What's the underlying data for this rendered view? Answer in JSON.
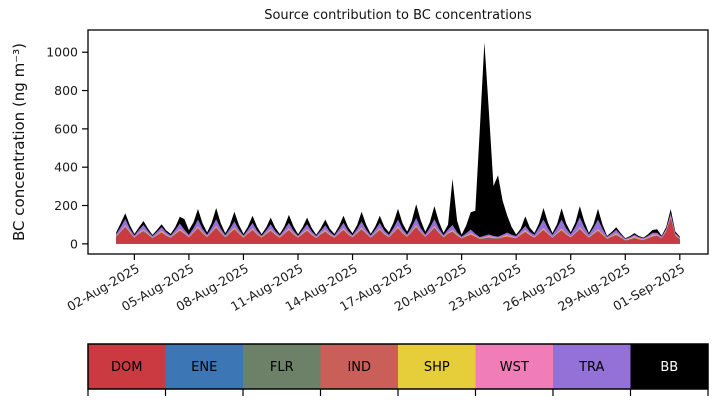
{
  "chart_data": {
    "type": "area",
    "stacked": true,
    "title": "Source contribution to BC concentrations",
    "xlabel": "",
    "ylabel": "BC concentration (ng m⁻³)",
    "grid": false,
    "x_unit": "days (1 = 01-Aug-2025 00:00, 0.25 = 6 h step)",
    "x_days": {
      "start": 1.0,
      "step": 0.25,
      "count": 125
    },
    "xlim": [
      -0.55,
      33.55
    ],
    "ylim": [
      -53,
      1116
    ],
    "yticks": [
      0,
      200,
      400,
      600,
      800,
      1000
    ],
    "xticks": [
      {
        "t": 2,
        "label": "02-Aug-2025"
      },
      {
        "t": 5,
        "label": "05-Aug-2025"
      },
      {
        "t": 8,
        "label": "08-Aug-2025"
      },
      {
        "t": 11,
        "label": "11-Aug-2025"
      },
      {
        "t": 14,
        "label": "14-Aug-2025"
      },
      {
        "t": 17,
        "label": "17-Aug-2025"
      },
      {
        "t": 20,
        "label": "20-Aug-2025"
      },
      {
        "t": 23,
        "label": "23-Aug-2025"
      },
      {
        "t": 26,
        "label": "26-Aug-2025"
      },
      {
        "t": 29,
        "label": "29-Aug-2025"
      },
      {
        "t": 32,
        "label": "01-Sep-2025"
      }
    ],
    "legend": {
      "position": "bottom-bar",
      "text_color_default": "#000000"
    },
    "series": [
      {
        "name": "DOM",
        "color": "#cb3a41",
        "label_text_color": "#000000",
        "values": [
          35,
          60,
          85,
          55,
          30,
          50,
          62,
          45,
          28,
          42,
          55,
          40,
          30,
          48,
          65,
          50,
          32,
          55,
          78,
          52,
          33,
          56,
          80,
          54,
          32,
          52,
          72,
          50,
          30,
          50,
          68,
          46,
          30,
          48,
          64,
          44,
          30,
          50,
          68,
          46,
          30,
          48,
          64,
          44,
          28,
          46,
          60,
          42,
          30,
          50,
          68,
          46,
          32,
          52,
          72,
          50,
          30,
          50,
          68,
          46,
          32,
          55,
          78,
          52,
          34,
          58,
          84,
          56,
          34,
          56,
          80,
          54,
          32,
          50,
          60,
          40,
          26,
          36,
          44,
          34,
          24,
          26,
          28,
          26,
          26,
          30,
          34,
          30,
          28,
          44,
          58,
          42,
          30,
          50,
          68,
          48,
          30,
          50,
          66,
          46,
          32,
          52,
          74,
          50,
          30,
          48,
          64,
          44,
          24,
          34,
          42,
          30,
          16,
          20,
          26,
          20,
          18,
          26,
          34,
          40,
          26,
          60,
          130,
          40,
          22
        ]
      },
      {
        "name": "ENE",
        "color": "#3d76b4",
        "label_text_color": "#000000",
        "values": [
          0.8,
          1.2,
          1.8,
          1.2,
          0.8,
          1.2,
          1.8,
          1.2,
          0.8,
          1.2,
          1.8,
          1.2,
          0.8,
          1.2,
          1.8,
          1.2,
          0.8,
          1.2,
          1.8,
          1.2,
          0.8,
          1.2,
          1.8,
          1.2,
          0.8,
          1.2,
          1.8,
          1.2,
          0.8,
          1.2,
          1.8,
          1.2,
          0.8,
          1.2,
          1.8,
          1.2,
          0.8,
          1.2,
          1.8,
          1.2,
          0.8,
          1.2,
          1.8,
          1.2,
          0.8,
          1.2,
          1.8,
          1.2,
          0.8,
          1.2,
          1.8,
          1.2,
          0.8,
          1.2,
          1.8,
          1.2,
          0.8,
          1.2,
          1.8,
          1.2,
          0.8,
          1.2,
          1.8,
          1.2,
          0.8,
          1.2,
          1.8,
          1.2,
          0.8,
          1.2,
          1.8,
          1.2,
          0.8,
          1.2,
          1.8,
          1.2,
          0.8,
          1.2,
          1.8,
          1.2,
          0.8,
          1.2,
          1.8,
          1.2,
          0.8,
          1.2,
          1.8,
          1.2,
          0.8,
          1.2,
          1.8,
          1.2,
          0.8,
          1.2,
          1.8,
          1.2,
          0.8,
          1.2,
          1.8,
          1.2,
          0.8,
          1.2,
          1.8,
          1.2,
          0.8,
          1.2,
          1.8,
          1.2,
          0.8,
          1.2,
          1.8,
          1.2,
          0.8,
          1.2,
          1.8,
          1.2,
          0.8,
          1.2,
          1.8,
          1.2,
          0.8,
          1.2,
          1.8,
          1.2,
          0.8
        ]
      },
      {
        "name": "FLR",
        "color": "#6d8169",
        "label_text_color": "#000000",
        "values": [
          0.7,
          1.1,
          1.7,
          1.1,
          0.7,
          1.1,
          1.7,
          1.1,
          0.7,
          1.1,
          1.7,
          1.1,
          0.7,
          1.1,
          1.7,
          1.1,
          0.7,
          1.1,
          1.7,
          1.1,
          0.7,
          1.1,
          1.7,
          1.1,
          0.7,
          1.1,
          1.7,
          1.1,
          0.7,
          1.1,
          1.7,
          1.1,
          0.7,
          1.1,
          1.7,
          1.1,
          0.7,
          1.1,
          1.7,
          1.1,
          0.7,
          1.1,
          1.7,
          1.1,
          0.7,
          1.1,
          1.7,
          1.1,
          0.7,
          1.1,
          1.7,
          1.1,
          0.7,
          1.1,
          1.7,
          1.1,
          0.7,
          1.1,
          1.7,
          1.1,
          0.7,
          1.1,
          1.7,
          1.1,
          0.7,
          1.1,
          1.7,
          1.1,
          0.7,
          1.1,
          1.7,
          1.1,
          0.7,
          1.1,
          1.7,
          1.1,
          0.7,
          1.1,
          1.7,
          1.1,
          0.7,
          1.1,
          1.7,
          1.1,
          0.7,
          1.1,
          1.7,
          1.1,
          0.7,
          1.1,
          1.7,
          1.1,
          0.7,
          1.1,
          1.7,
          1.1,
          0.7,
          1.1,
          1.7,
          1.1,
          0.7,
          1.1,
          1.7,
          1.1,
          0.7,
          1.1,
          1.7,
          1.1,
          0.7,
          1.1,
          1.7,
          1.1,
          0.7,
          1.1,
          1.7,
          1.1,
          0.7,
          1.1,
          1.7,
          1.1,
          0.7,
          1.1,
          1.7,
          1.1,
          0.7
        ]
      },
      {
        "name": "IND",
        "color": "#c95f58",
        "label_text_color": "#000000",
        "values": [
          1.2,
          1.8,
          2.6,
          1.8,
          1.2,
          1.8,
          2.6,
          1.8,
          1.2,
          1.8,
          2.6,
          1.8,
          1.2,
          1.8,
          2.6,
          1.8,
          1.2,
          1.8,
          2.6,
          1.8,
          1.2,
          1.8,
          2.6,
          1.8,
          1.2,
          1.8,
          2.6,
          1.8,
          1.2,
          1.8,
          2.6,
          1.8,
          1.2,
          1.8,
          2.6,
          1.8,
          1.2,
          1.8,
          2.6,
          1.8,
          1.2,
          1.8,
          2.6,
          1.8,
          1.2,
          1.8,
          2.6,
          1.8,
          1.2,
          1.8,
          2.6,
          1.8,
          1.2,
          1.8,
          2.6,
          1.8,
          1.2,
          1.8,
          2.6,
          1.8,
          1.2,
          1.8,
          2.6,
          1.8,
          1.2,
          1.8,
          2.6,
          1.8,
          1.2,
          1.8,
          2.6,
          1.8,
          1.2,
          1.8,
          2.6,
          1.8,
          1.2,
          1.8,
          2.6,
          1.8,
          1.2,
          1.8,
          2.6,
          1.8,
          1.2,
          1.8,
          2.6,
          1.8,
          1.2,
          1.8,
          2.6,
          1.8,
          1.2,
          1.8,
          2.6,
          1.8,
          1.2,
          1.8,
          2.6,
          1.8,
          1.2,
          1.8,
          2.6,
          1.8,
          1.2,
          1.8,
          2.6,
          1.8,
          1.2,
          1.8,
          2.6,
          1.8,
          1.2,
          1.8,
          2.6,
          1.8,
          1.2,
          1.8,
          2.6,
          1.8,
          1.2,
          1.8,
          2.6,
          1.8,
          1.2
        ]
      },
      {
        "name": "SHP",
        "color": "#e5ce3a",
        "label_text_color": "#000000",
        "values": [
          1.5,
          2.2,
          3.5,
          2.4,
          1.5,
          2.2,
          3.5,
          2.4,
          1.5,
          2.2,
          3.5,
          2.4,
          1.5,
          2.2,
          3.5,
          2.4,
          1.5,
          2.2,
          3.5,
          2.4,
          1.5,
          2.2,
          3.5,
          2.4,
          1.5,
          2.2,
          3.5,
          2.4,
          1.5,
          2.2,
          3.5,
          2.4,
          1.5,
          2.2,
          3.5,
          2.4,
          1.5,
          2.2,
          3.5,
          2.4,
          1.5,
          2.2,
          3.5,
          2.4,
          1.5,
          2.2,
          3.5,
          2.4,
          1.5,
          2.2,
          3.5,
          2.4,
          1.5,
          2.2,
          3.5,
          2.4,
          1.5,
          2.2,
          3.5,
          2.4,
          1.5,
          2.2,
          3.5,
          2.4,
          1.5,
          2.2,
          3.5,
          2.4,
          1.5,
          2.2,
          3.5,
          2.4,
          1.5,
          2.2,
          3.5,
          2.4,
          1.5,
          2.2,
          3.5,
          2.4,
          1.5,
          2.2,
          3.5,
          2.4,
          1.5,
          2.2,
          3.5,
          2.4,
          1.5,
          2.2,
          3.5,
          2.4,
          1.5,
          2.2,
          3.5,
          2.4,
          1.5,
          2.2,
          3.5,
          2.4,
          1.5,
          2.2,
          3.5,
          2.4,
          1.5,
          2.2,
          3.5,
          2.4,
          1.5,
          2.2,
          3.5,
          2.4,
          1.5,
          2.2,
          3.5,
          2.4,
          1.5,
          2.2,
          3.5,
          2.4,
          1.5,
          2.2,
          3.5,
          2.4,
          1.5
        ]
      },
      {
        "name": "WST",
        "color": "#f07db8",
        "label_text_color": "#000000",
        "values": [
          2.5,
          3.5,
          5.5,
          3.8,
          2.5,
          3.5,
          5.5,
          3.8,
          2.5,
          3.5,
          5.5,
          3.8,
          2.5,
          3.5,
          5.5,
          3.8,
          2.5,
          3.5,
          5.5,
          3.8,
          2.5,
          3.5,
          5.5,
          3.8,
          2.5,
          3.5,
          5.5,
          3.8,
          2.5,
          3.5,
          5.5,
          3.8,
          2.5,
          3.5,
          5.5,
          3.8,
          2.5,
          3.5,
          5.5,
          3.8,
          2.5,
          3.5,
          5.5,
          3.8,
          2.5,
          3.5,
          5.5,
          3.8,
          2.5,
          3.5,
          5.5,
          3.8,
          2.5,
          3.5,
          5.5,
          3.8,
          2.5,
          3.5,
          5.5,
          3.8,
          2.5,
          3.5,
          5.5,
          3.8,
          2.5,
          3.5,
          5.5,
          3.8,
          2.5,
          3.5,
          5.5,
          3.8,
          2.5,
          3.5,
          5.5,
          3.8,
          2.5,
          3.5,
          5.5,
          3.8,
          2.5,
          3.5,
          5.5,
          3.8,
          2.5,
          3.5,
          5.5,
          3.8,
          2.5,
          3.5,
          5.5,
          3.8,
          2.5,
          3.5,
          5.5,
          3.8,
          2.5,
          3.5,
          5.5,
          3.8,
          2.5,
          3.5,
          5.5,
          3.8,
          2.5,
          3.5,
          5.5,
          3.8,
          2.5,
          3.5,
          5.5,
          3.8,
          2.5,
          3.5,
          5.5,
          3.8,
          2.5,
          3.5,
          5.5,
          3.8,
          2.5,
          3.5,
          5.5,
          3.8,
          2.5
        ]
      },
      {
        "name": "TRA",
        "color": "#9471d6",
        "label_text_color": "#000000",
        "values": [
          8,
          18,
          30,
          15,
          7,
          14,
          22,
          12,
          6,
          12,
          18,
          10,
          7,
          15,
          26,
          14,
          8,
          18,
          34,
          16,
          8,
          18,
          34,
          16,
          7,
          16,
          30,
          14,
          7,
          15,
          26,
          13,
          6,
          14,
          24,
          12,
          7,
          15,
          26,
          13,
          6,
          14,
          24,
          12,
          6,
          13,
          22,
          11,
          7,
          15,
          26,
          13,
          7,
          16,
          30,
          14,
          7,
          15,
          26,
          13,
          8,
          18,
          34,
          16,
          8,
          19,
          36,
          17,
          8,
          18,
          34,
          16,
          7,
          15,
          24,
          10,
          5,
          10,
          16,
          8,
          5,
          6,
          6,
          5,
          5,
          8,
          10,
          8,
          6,
          12,
          20,
          11,
          10,
          24,
          44,
          22,
          10,
          24,
          46,
          24,
          12,
          26,
          50,
          26,
          12,
          26,
          48,
          24,
          6,
          10,
          16,
          8,
          3,
          5,
          7,
          5,
          4,
          6,
          9,
          8,
          5,
          8,
          14,
          6,
          4
        ]
      },
      {
        "name": "BB",
        "color": "#000000",
        "label_text_color": "#ffffff",
        "values": [
          10,
          20,
          30,
          18,
          8,
          12,
          20,
          12,
          6,
          10,
          14,
          10,
          8,
          15,
          35,
          55,
          25,
          30,
          55,
          30,
          12,
          25,
          58,
          28,
          10,
          20,
          50,
          25,
          8,
          16,
          38,
          20,
          8,
          14,
          34,
          18,
          8,
          16,
          42,
          22,
          8,
          14,
          34,
          18,
          7,
          13,
          30,
          16,
          8,
          16,
          38,
          20,
          10,
          20,
          50,
          25,
          8,
          16,
          38,
          20,
          14,
          28,
          56,
          30,
          15,
          30,
          72,
          40,
          14,
          28,
          68,
          36,
          12,
          25,
          240,
          60,
          10,
          40,
          90,
          120,
          560,
          1010,
          640,
          260,
          320,
          180,
          90,
          40,
          8,
          14,
          50,
          22,
          10,
          22,
          60,
          30,
          10,
          20,
          58,
          26,
          10,
          22,
          58,
          30,
          8,
          18,
          56,
          22,
          5,
          8,
          14,
          8,
          3,
          5,
          8,
          5,
          4,
          8,
          14,
          18,
          5,
          10,
          22,
          8,
          5
        ]
      }
    ]
  },
  "layout_colors": {
    "axes_line": "#000000",
    "tick_label": "#1a1a1a",
    "background": "#ffffff"
  }
}
